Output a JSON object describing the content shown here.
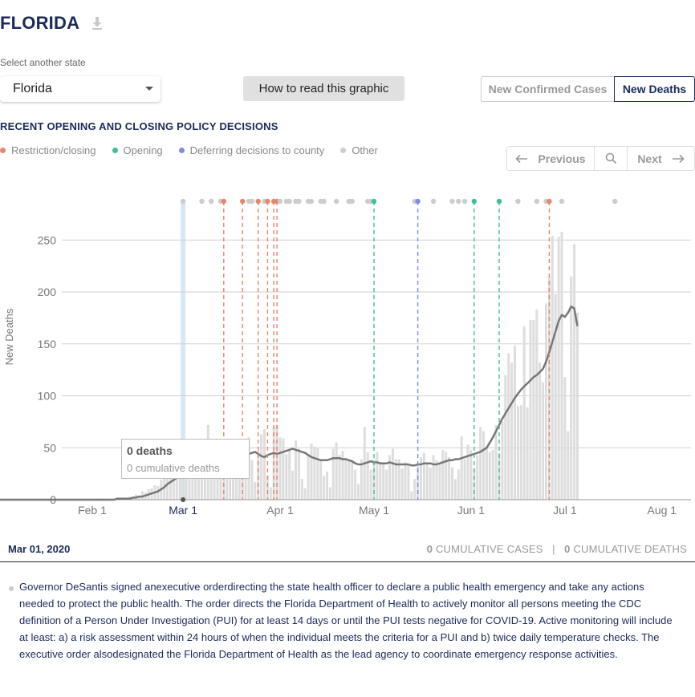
{
  "header": {
    "title": "FLORIDA",
    "download_icon": "download-icon"
  },
  "controls": {
    "select_label": "Select another state",
    "selected_state": "Florida",
    "how_to_read": "How to read this graphic",
    "metric_options": [
      "New Confirmed Cases",
      "New Deaths"
    ],
    "active_metric": "New Deaths"
  },
  "policy": {
    "heading": "RECENT OPENING AND CLOSING POLICY DECISIONS",
    "legend": [
      {
        "label": "Restriction/closing",
        "color": "#e8866a"
      },
      {
        "label": "Opening",
        "color": "#3dbf9b"
      },
      {
        "label": "Deferring decisions to county",
        "color": "#7e8de8"
      },
      {
        "label": "Other",
        "color": "#cccccc"
      }
    ]
  },
  "nav": {
    "previous": "Previous",
    "next": "Next",
    "search_icon": "search-icon"
  },
  "tooltip": {
    "deaths": "0 deaths",
    "cumulative": "0 cumulative deaths"
  },
  "selection": {
    "date": "Mar 01, 2020",
    "cum_cases_value": "0",
    "cum_cases_label": " CUMULATIVE CASES",
    "separator": "|",
    "cum_deaths_value": "0",
    "cum_deaths_label": " CUMULATIVE DEATHS"
  },
  "detail": {
    "text": "Governor DeSantis signed anexecutive orderdirecting the state health officer to declare a public health emergency and take any actions needed to protect the public health. The order directs the Florida Department of Health to actively monitor all persons meeting the CDC definition of a Person Under Investigation (PUI) for at least 14 days or until the PUI tests negative for COVID-19. Active monitoring will include at least: a) a risk assessment within 24 hours of when the individual meets the criteria for a PUI and b) twice daily temperature checks. The executive order alsodesignated the Florida Department of Health as the lead agency to coordinate emergency response activities."
  },
  "chart_data": {
    "type": "bar",
    "ylabel": "New Deaths",
    "ylim": [
      0,
      290
    ],
    "yticks": [
      0,
      50,
      100,
      150,
      200,
      250
    ],
    "xticks": [
      {
        "label": "Feb 1",
        "day": 0
      },
      {
        "label": "Mar 1",
        "day": 29
      },
      {
        "label": "Apr 1",
        "day": 60
      },
      {
        "label": "May 1",
        "day": 90
      },
      {
        "label": "Jun 1",
        "day": 121
      },
      {
        "label": "Jul 1",
        "day": 151
      },
      {
        "label": "Aug 1",
        "day": 182
      }
    ],
    "x_start_date": "Jan 22",
    "selected_day": 29,
    "colors": {
      "bars": "#dddddd",
      "line": "#777777",
      "selected": "#d6e8f7",
      "grid": "#cfcfcf"
    },
    "daily_deaths": [
      0,
      0,
      0,
      0,
      0,
      0,
      0,
      0,
      0,
      0,
      0,
      0,
      0,
      0,
      0,
      0,
      0,
      0,
      0,
      0,
      0,
      0,
      0,
      0,
      0,
      0,
      0,
      0,
      0,
      0,
      0,
      0,
      0,
      0,
      0,
      0,
      0,
      0,
      0,
      0,
      0,
      1,
      0,
      0,
      0,
      1,
      0,
      1,
      2,
      0,
      3,
      2,
      5,
      4,
      8,
      7,
      10,
      11,
      14,
      13,
      19,
      24,
      28,
      29,
      27,
      45,
      25,
      43,
      33,
      27,
      46,
      38,
      45,
      51,
      47,
      72,
      58,
      40,
      30,
      49,
      30,
      26,
      42,
      49,
      44,
      43,
      26,
      57,
      60,
      38,
      17,
      47,
      63,
      68,
      23,
      12,
      70,
      72,
      60,
      59,
      44,
      47,
      28,
      57,
      49,
      20,
      11,
      43,
      54,
      51,
      50,
      39,
      23,
      27,
      12,
      49,
      55,
      43,
      47,
      40,
      38,
      36,
      29,
      15,
      39,
      70,
      46,
      29,
      38,
      46,
      36,
      34,
      29,
      43,
      49,
      39,
      39,
      30,
      36,
      33,
      8,
      20,
      34,
      41,
      45,
      34,
      31,
      43,
      38,
      34,
      48,
      46,
      41,
      31,
      20,
      29,
      61,
      39,
      53,
      48,
      30,
      43,
      70,
      66,
      51,
      46,
      48,
      72,
      45,
      75,
      120,
      141,
      132,
      148,
      90,
      91,
      167,
      89,
      173,
      173,
      183,
      132,
      113,
      189,
      215,
      254,
      198,
      253,
      258,
      118,
      66,
      215,
      246,
      180
    ],
    "avg_deaths": [
      0,
      0,
      0,
      0,
      0,
      0,
      0,
      0,
      0,
      0,
      0,
      0,
      0,
      0,
      0,
      0,
      0,
      0,
      0,
      0,
      0,
      0,
      0,
      0,
      0,
      0,
      0,
      0,
      0,
      0,
      0,
      0,
      0,
      0,
      0,
      0,
      0,
      0,
      0,
      0,
      0,
      0,
      0,
      0,
      0,
      0,
      1,
      1,
      1,
      1,
      1,
      2,
      2,
      3,
      3,
      4,
      5,
      6,
      7,
      8,
      10,
      12,
      15,
      17,
      19,
      21,
      24,
      26,
      28,
      29,
      30,
      32,
      34,
      36,
      38,
      40,
      42,
      44,
      45,
      46,
      45,
      44,
      45,
      46,
      47,
      48,
      47,
      45,
      44,
      45,
      46,
      44,
      42,
      41,
      43,
      44,
      45,
      44,
      45,
      46,
      47,
      48,
      49,
      48,
      47,
      46,
      45,
      43,
      41,
      40,
      39,
      38,
      38,
      38,
      39,
      40,
      40,
      40,
      39,
      39,
      38,
      37,
      35,
      34,
      34,
      35,
      36,
      37,
      36,
      36,
      35,
      35,
      35,
      36,
      35,
      34,
      34,
      34,
      34,
      34,
      33,
      33,
      34,
      34,
      35,
      35,
      35,
      34,
      34,
      35,
      36,
      37,
      38,
      38,
      39,
      39,
      40,
      41,
      42,
      43,
      44,
      45,
      46,
      48,
      50,
      55,
      60,
      66,
      72,
      78,
      83,
      88,
      93,
      98,
      102,
      106,
      109,
      112,
      115,
      118,
      120,
      123,
      126,
      133,
      142,
      152,
      162,
      172,
      178,
      176,
      180,
      186,
      184,
      167
    ]
  },
  "policy_events": {
    "markers": [
      {
        "day": 29,
        "kind": "other",
        "line": false
      },
      {
        "day": 35,
        "kind": "other",
        "line": false
      },
      {
        "day": 38,
        "kind": "other",
        "line": false
      },
      {
        "day": 41,
        "kind": "other",
        "line": false
      },
      {
        "day": 42,
        "kind": "restriction",
        "line": true
      },
      {
        "day": 48,
        "kind": "restriction",
        "line": true
      },
      {
        "day": 50,
        "kind": "other",
        "line": false
      },
      {
        "day": 51,
        "kind": "other",
        "line": false
      },
      {
        "day": 53,
        "kind": "restriction",
        "line": true
      },
      {
        "day": 55,
        "kind": "other",
        "line": false
      },
      {
        "day": 56,
        "kind": "restriction",
        "line": true
      },
      {
        "day": 58,
        "kind": "restriction",
        "line": true
      },
      {
        "day": 59,
        "kind": "restriction",
        "line": true
      },
      {
        "day": 60,
        "kind": "other",
        "line": false
      },
      {
        "day": 62,
        "kind": "other",
        "line": false
      },
      {
        "day": 63,
        "kind": "other",
        "line": false
      },
      {
        "day": 65,
        "kind": "other",
        "line": false
      },
      {
        "day": 66,
        "kind": "other",
        "line": false
      },
      {
        "day": 69,
        "kind": "other",
        "line": false
      },
      {
        "day": 70,
        "kind": "other",
        "line": false
      },
      {
        "day": 73,
        "kind": "other",
        "line": false
      },
      {
        "day": 74,
        "kind": "other",
        "line": false
      },
      {
        "day": 78,
        "kind": "other",
        "line": false
      },
      {
        "day": 82,
        "kind": "other",
        "line": false
      },
      {
        "day": 83,
        "kind": "other",
        "line": false
      },
      {
        "day": 88,
        "kind": "other",
        "line": false
      },
      {
        "day": 89,
        "kind": "other",
        "line": false
      },
      {
        "day": 90,
        "kind": "opening",
        "line": true
      },
      {
        "day": 103,
        "kind": "other",
        "line": false
      },
      {
        "day": 104,
        "kind": "deferring",
        "line": true
      },
      {
        "day": 109,
        "kind": "other",
        "line": false
      },
      {
        "day": 115,
        "kind": "other",
        "line": false
      },
      {
        "day": 117,
        "kind": "other",
        "line": false
      },
      {
        "day": 119,
        "kind": "other",
        "line": false
      },
      {
        "day": 122,
        "kind": "opening",
        "line": true
      },
      {
        "day": 130,
        "kind": "opening",
        "line": true
      },
      {
        "day": 136,
        "kind": "other",
        "line": false
      },
      {
        "day": 142,
        "kind": "other",
        "line": false
      },
      {
        "day": 145,
        "kind": "other",
        "line": false
      },
      {
        "day": 146,
        "kind": "restriction",
        "line": true
      },
      {
        "day": 150,
        "kind": "other",
        "line": false
      },
      {
        "day": 167,
        "kind": "other",
        "line": false
      }
    ],
    "colors": {
      "restriction": "#e8866a",
      "opening": "#3dbf9b",
      "deferring": "#7e8de8",
      "other": "#cccccc"
    }
  }
}
